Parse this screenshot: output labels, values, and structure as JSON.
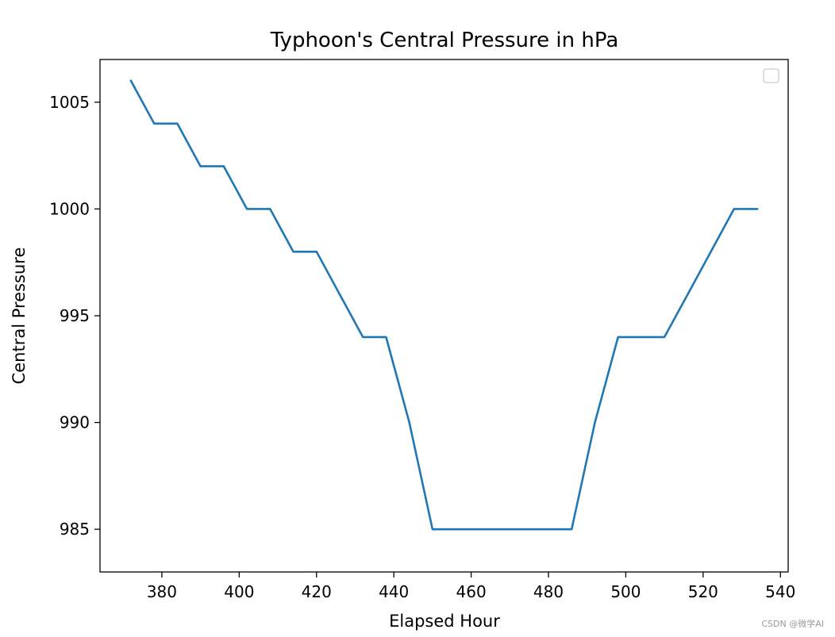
{
  "chart_data": {
    "type": "line",
    "title": "Typhoon's Central Pressure in hPa",
    "xlabel": "Elapsed Hour",
    "ylabel": "Central Pressure",
    "xlim": [
      364,
      542
    ],
    "ylim": [
      983,
      1007
    ],
    "xticks": [
      380,
      400,
      420,
      440,
      460,
      480,
      500,
      520,
      540
    ],
    "yticks": [
      985,
      990,
      995,
      1000,
      1005
    ],
    "grid": false,
    "legend": {
      "placement": "upper right",
      "entries": []
    },
    "series": [
      {
        "color": "#1f77b4",
        "x": [
          372,
          378,
          384,
          390,
          396,
          402,
          408,
          414,
          420,
          426,
          432,
          438,
          444,
          450,
          456,
          462,
          468,
          474,
          480,
          486,
          492,
          498,
          504,
          510,
          516,
          522,
          528,
          534
        ],
        "y": [
          1006,
          1004,
          1004,
          1002,
          1002,
          1000,
          1000,
          998,
          998,
          996,
          994,
          994,
          990,
          985,
          985,
          985,
          985,
          985,
          985,
          985,
          990,
          994,
          994,
          994,
          996,
          998,
          1000,
          1000
        ]
      }
    ]
  },
  "watermark": "CSDN @微学AI"
}
